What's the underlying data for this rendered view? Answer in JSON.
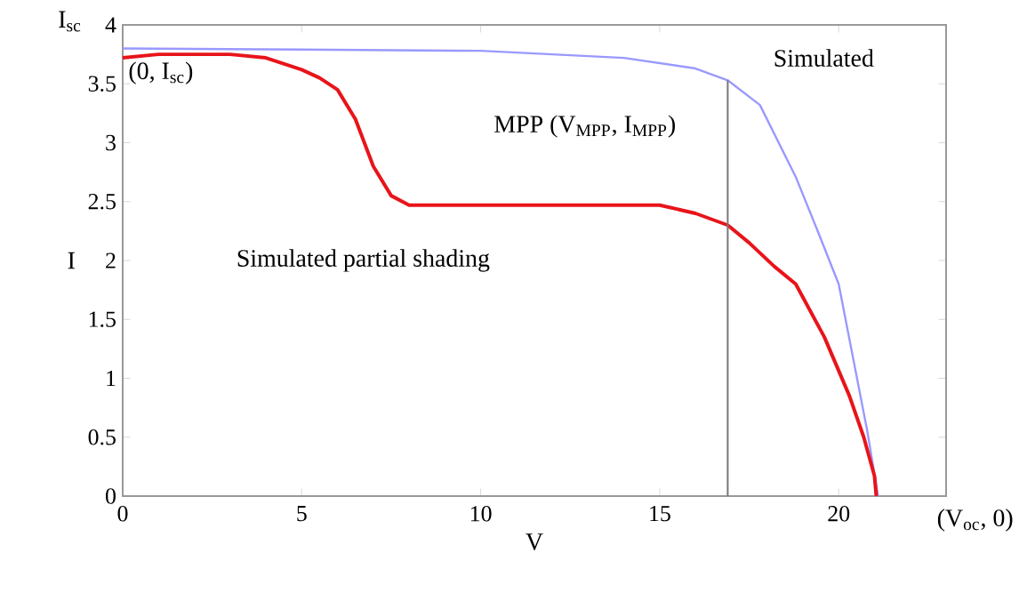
{
  "chart_data": {
    "type": "line",
    "xlabel": "V",
    "ylabel": "I",
    "xlim": [
      0,
      23
    ],
    "ylim": [
      0,
      4
    ],
    "xticks": [
      0,
      5,
      10,
      15,
      20
    ],
    "yticks": [
      0,
      0.5,
      1,
      1.5,
      2,
      2.5,
      3,
      3.5,
      4
    ],
    "grid": false,
    "legend": false,
    "marker": "none",
    "line_style": "solid",
    "series": [
      {
        "name": "Simulated",
        "color": "#9999ff",
        "x": [
          0,
          5,
          10,
          14,
          16,
          16.9,
          17.8,
          18.8,
          19.4,
          20,
          20.8,
          21.1
        ],
        "values": [
          3.8,
          3.79,
          3.78,
          3.72,
          3.63,
          3.53,
          3.32,
          2.71,
          2.26,
          1.8,
          0.55,
          0
        ]
      },
      {
        "name": "Simulated partial shading",
        "color": "#e8141a",
        "x": [
          0,
          1,
          3,
          4,
          5,
          5.5,
          6,
          6.5,
          7,
          7.5,
          8,
          10,
          15,
          16,
          16.9,
          17.5,
          18.2,
          18.8,
          19.6,
          20.3,
          20.7,
          21,
          21.05
        ],
        "values": [
          3.72,
          3.75,
          3.75,
          3.72,
          3.62,
          3.55,
          3.45,
          3.2,
          2.8,
          2.55,
          2.47,
          2.47,
          2.47,
          2.4,
          2.3,
          2.15,
          1.95,
          1.8,
          1.35,
          0.85,
          0.5,
          0.17,
          0
        ]
      },
      {
        "color": "#777777",
        "x": [
          16.9,
          16.9
        ],
        "values": [
          0,
          3.53
        ]
      }
    ],
    "annotations": [
      "I$_{sc}$",
      {
        "text": "(0, I$_{sc}$)",
        "x": 0,
        "y": 3.75
      },
      {
        "text": "MPP (V$_{MPP}$, I$_{MPP}$)",
        "x": 16.9,
        "y": 3.53
      },
      {
        "text": "(V$_{oc}$, 0)",
        "x": 21.1,
        "y": 0
      }
    ]
  }
}
